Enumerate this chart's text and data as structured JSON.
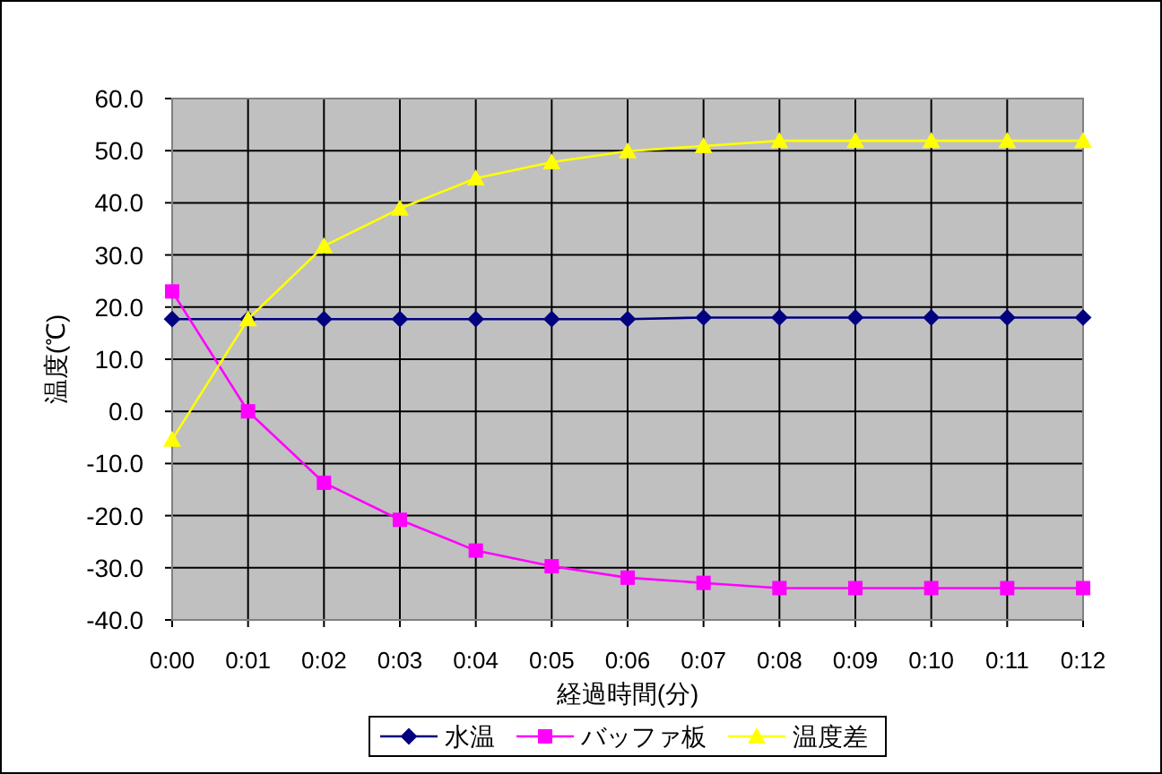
{
  "chart_data": {
    "type": "line",
    "xlabel": "経過時間(分)",
    "ylabel": "温度(℃)",
    "categories": [
      "0:00",
      "0:01",
      "0:02",
      "0:03",
      "0:04",
      "0:05",
      "0:06",
      "0:07",
      "0:08",
      "0:09",
      "0:10",
      "0:11",
      "0:12"
    ],
    "series": [
      {
        "name": "水温",
        "color": "#000080",
        "marker": "diamond",
        "values": [
          17.7,
          17.7,
          17.7,
          17.7,
          17.7,
          17.7,
          17.7,
          18.0,
          18.0,
          18.0,
          18.0,
          18.0,
          18.0
        ]
      },
      {
        "name": "バッファ板",
        "color": "#ff00ff",
        "marker": "square",
        "values": [
          23.0,
          0.0,
          -13.7,
          -20.8,
          -26.7,
          -29.7,
          -31.9,
          -32.9,
          -33.9,
          -33.9,
          -33.9,
          -33.9,
          -33.9
        ]
      },
      {
        "name": "温度差",
        "color": "#ffff00",
        "marker": "triangle",
        "values": [
          -5.4,
          17.7,
          31.7,
          38.9,
          44.7,
          47.8,
          49.9,
          50.9,
          51.9,
          51.9,
          51.9,
          51.9,
          51.9
        ]
      }
    ],
    "ylim": [
      -40,
      60
    ],
    "yticks": [
      {
        "value": -40,
        "label": "-40.0"
      },
      {
        "value": -30,
        "label": "-30.0"
      },
      {
        "value": -20,
        "label": "-20.0"
      },
      {
        "value": -10,
        "label": "-10.0"
      },
      {
        "value": 0,
        "label": "0.0"
      },
      {
        "value": 10,
        "label": "10.0"
      },
      {
        "value": 20,
        "label": "20.0"
      },
      {
        "value": 30,
        "label": "30.0"
      },
      {
        "value": 40,
        "label": "40.0"
      },
      {
        "value": 50,
        "label": "50.0"
      },
      {
        "value": 60,
        "label": "60.0"
      }
    ],
    "grid": true,
    "legend": "bottom"
  }
}
